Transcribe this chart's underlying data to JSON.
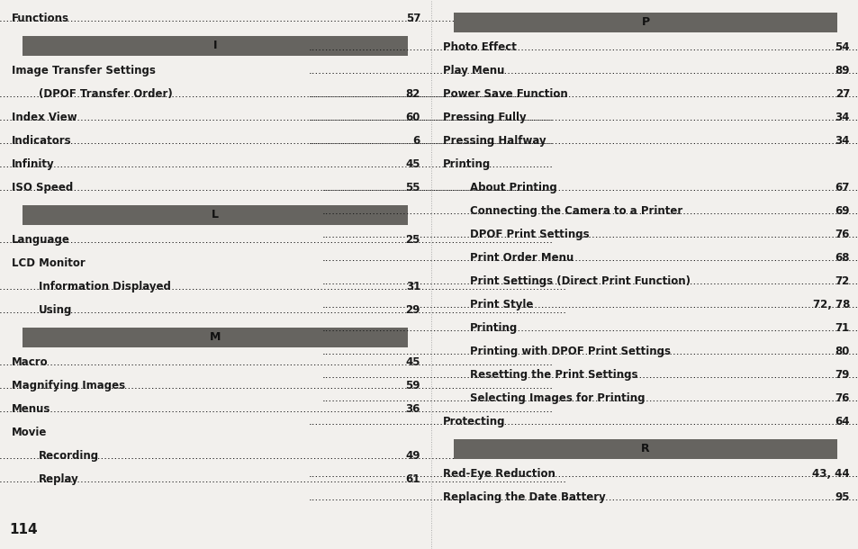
{
  "bg_color": "#f2f0ed",
  "header_bg": "#666460",
  "header_text_color": "#1a1a1a",
  "text_color": "#1a1a1a",
  "page_number": "114",
  "left_column": {
    "items": [
      {
        "text": "Functions",
        "page": "57",
        "indent": 0,
        "header": false
      },
      {
        "text": "I",
        "page": "",
        "indent": 0,
        "header": true
      },
      {
        "text": "Image Transfer Settings",
        "page": "",
        "indent": 0,
        "header": false
      },
      {
        "text": "(DPOF Transfer Order)",
        "page": "82",
        "indent": 1,
        "header": false
      },
      {
        "text": "Index View",
        "page": "60",
        "indent": 0,
        "header": false
      },
      {
        "text": "Indicators",
        "page": "6",
        "indent": 0,
        "header": false
      },
      {
        "text": "Infinity",
        "page": "45",
        "indent": 0,
        "header": false
      },
      {
        "text": "ISO Speed",
        "page": "55",
        "indent": 0,
        "header": false
      },
      {
        "text": "L",
        "page": "",
        "indent": 0,
        "header": true
      },
      {
        "text": "Language",
        "page": "25",
        "indent": 0,
        "header": false
      },
      {
        "text": "LCD Monitor",
        "page": "",
        "indent": 0,
        "header": false
      },
      {
        "text": "Information Displayed",
        "page": "31",
        "indent": 1,
        "header": false
      },
      {
        "text": "Using",
        "page": "29",
        "indent": 1,
        "header": false
      },
      {
        "text": "M",
        "page": "",
        "indent": 0,
        "header": true
      },
      {
        "text": "Macro",
        "page": "45",
        "indent": 0,
        "header": false
      },
      {
        "text": "Magnifying Images",
        "page": "59",
        "indent": 0,
        "header": false
      },
      {
        "text": "Menus",
        "page": "36",
        "indent": 0,
        "header": false
      },
      {
        "text": "Movie",
        "page": "",
        "indent": 0,
        "header": false
      },
      {
        "text": "Recording",
        "page": "49",
        "indent": 1,
        "header": false
      },
      {
        "text": "Replay",
        "page": "61",
        "indent": 1,
        "header": false
      }
    ]
  },
  "right_column": {
    "items": [
      {
        "text": "P",
        "page": "",
        "indent": 0,
        "header": true
      },
      {
        "text": "Photo Effect",
        "page": "54",
        "indent": 0,
        "header": false
      },
      {
        "text": "Play Menu",
        "page": "89",
        "indent": 0,
        "header": false
      },
      {
        "text": "Power Save Function",
        "page": "27",
        "indent": 0,
        "header": false
      },
      {
        "text": "Pressing Fully",
        "page": "34",
        "indent": 0,
        "header": false
      },
      {
        "text": "Pressing Halfway",
        "page": "34",
        "indent": 0,
        "header": false
      },
      {
        "text": "Printing",
        "page": "",
        "indent": 0,
        "header": false
      },
      {
        "text": "About Printing",
        "page": "67",
        "indent": 1,
        "header": false
      },
      {
        "text": "Connecting the Camera to a Printer",
        "page": "69",
        "indent": 1,
        "header": false
      },
      {
        "text": "DPOF Print Settings",
        "page": "76",
        "indent": 1,
        "header": false
      },
      {
        "text": "Print Order Menu",
        "page": "68",
        "indent": 1,
        "header": false
      },
      {
        "text": "Print Settings (Direct Print Function)",
        "page": "72",
        "indent": 1,
        "header": false
      },
      {
        "text": "Print Style",
        "page": "72, 78",
        "indent": 1,
        "header": false
      },
      {
        "text": "Printing",
        "page": "71",
        "indent": 1,
        "header": false
      },
      {
        "text": "Printing with DPOF Print Settings",
        "page": "80",
        "indent": 1,
        "header": false
      },
      {
        "text": "Resetting the Print Settings",
        "page": "79",
        "indent": 1,
        "header": false
      },
      {
        "text": "Selecting Images for Printing",
        "page": "76",
        "indent": 1,
        "header": false
      },
      {
        "text": "Protecting",
        "page": "64",
        "indent": 0,
        "header": false
      },
      {
        "text": "R",
        "page": "",
        "indent": 0,
        "header": true
      },
      {
        "text": "Red-Eye Reduction",
        "page": "43, 44",
        "indent": 0,
        "header": false
      },
      {
        "text": "Replacing the Date Battery",
        "page": "95",
        "indent": 0,
        "header": false
      }
    ]
  }
}
